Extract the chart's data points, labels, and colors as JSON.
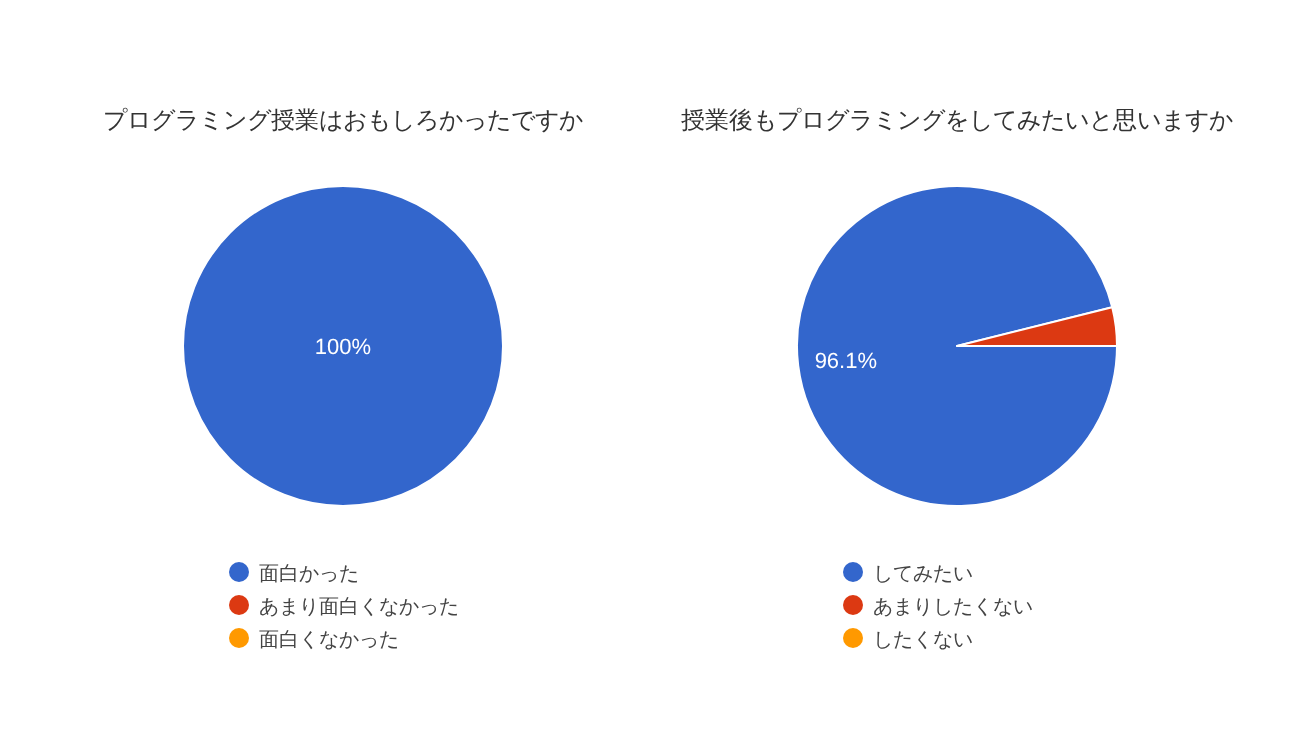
{
  "chart_data": [
    {
      "type": "pie",
      "title": "プログラミング授業はおもしろかったですか",
      "categories": [
        "面白かった",
        "あまり面白くなかった",
        "面白くなかった"
      ],
      "values": [
        100,
        0,
        0
      ],
      "colors": [
        "#3366cc",
        "#dc3912",
        "#ff9900"
      ],
      "value_labels": [
        "100%",
        null,
        null
      ],
      "legend": "bottom"
    },
    {
      "type": "pie",
      "title": "授業後もプログラミングをしてみたいと思いますか",
      "categories": [
        "してみたい",
        "あまりしたくない",
        "したくない"
      ],
      "values": [
        96.1,
        3.9,
        0
      ],
      "colors": [
        "#3366cc",
        "#dc3912",
        "#ff9900"
      ],
      "value_labels": [
        "96.1%",
        null,
        null
      ],
      "legend": "bottom"
    }
  ]
}
